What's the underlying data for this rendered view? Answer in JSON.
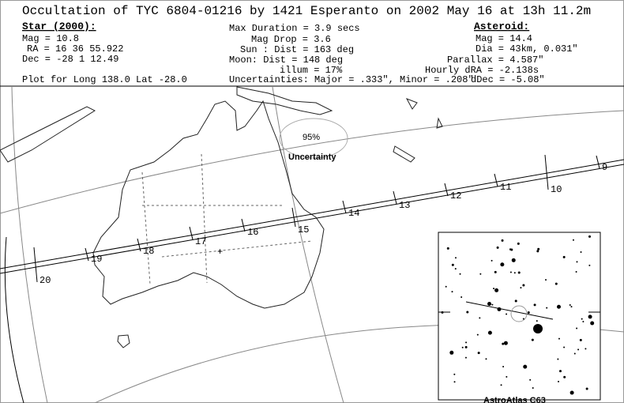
{
  "header": {
    "title": "Occultation of TYC 6804-01216 by 1421 Esperanto on  2002 May 16 at 13h 11.2m"
  },
  "star": {
    "heading": "Star (2000):",
    "mag": "Mag = 10.8",
    "ra": "RA  =  16 36 55.922",
    "dec": "Dec = -28  1 12.49"
  },
  "event": {
    "duration": "Max Duration = 3.9 secs",
    "mag_drop": "Mag Drop =  3.6",
    "sun": "Sun :   Dist = 163 deg",
    "moon": "Moon:   Dist = 148 deg",
    "illum": "illum = 17%"
  },
  "asteroid": {
    "heading": "Asteroid:",
    "mag": "Mag = 14.4",
    "dia": "Dia = 43km, 0.031\"",
    "parallax": "Parallax = 4.587\"",
    "hourly_dra": "Hourly dRA = -2.138s",
    "ddec": "dDec = -5.08\""
  },
  "footer": {
    "plot_for": "Plot for Long 138.0  Lat -28.0",
    "uncertainties": "Uncertainties: Major = .333\", Minor = .208\""
  },
  "map": {
    "ellipse_percent": "95%",
    "ellipse_label": "Uncertainty",
    "time_marks": [
      9,
      10,
      11,
      12,
      13,
      14,
      15,
      16,
      17,
      18,
      19,
      20
    ],
    "inset_label": "AstroAtlas C63"
  }
}
